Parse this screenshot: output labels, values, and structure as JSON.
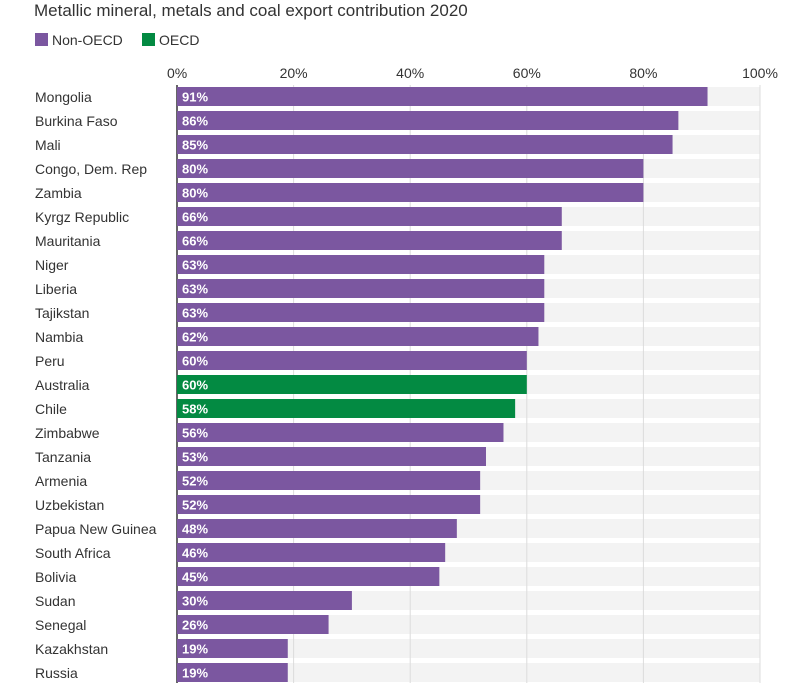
{
  "chart_data": {
    "type": "bar",
    "orientation": "horizontal",
    "title": "Metallic mineral, metals and coal export contribution 2020",
    "legend": [
      {
        "name": "Non-OECD",
        "color": "#7b57a0"
      },
      {
        "name": "OECD",
        "color": "#038a42"
      }
    ],
    "legend_placement": "top-left",
    "xlim": [
      0,
      100
    ],
    "x_ticks": [
      "0%",
      "20%",
      "40%",
      "60%",
      "80%",
      "100%"
    ],
    "x_tick_values": [
      0,
      20,
      40,
      60,
      80,
      100
    ],
    "grid": true,
    "categories": [
      "Mongolia",
      "Burkina Faso",
      "Mali",
      "Congo, Dem. Rep",
      "Zambia",
      "Kyrgz Republic",
      "Mauritania",
      "Niger",
      "Liberia",
      "Tajikstan",
      "Nambia",
      "Peru",
      "Australia",
      "Chile",
      "Zimbabwe",
      "Tanzania",
      "Armenia",
      "Uzbekistan",
      "Papua New Guinea",
      "South Africa",
      "Bolivia",
      "Sudan",
      "Senegal",
      "Kazakhstan",
      "Russia"
    ],
    "values": [
      91,
      86,
      85,
      80,
      80,
      66,
      66,
      63,
      63,
      63,
      62,
      60,
      60,
      58,
      56,
      53,
      52,
      52,
      48,
      46,
      45,
      30,
      26,
      19,
      19
    ],
    "value_labels": [
      "91%",
      "86%",
      "85%",
      "80%",
      "80%",
      "66%",
      "66%",
      "63%",
      "63%",
      "63%",
      "62%",
      "60%",
      "60%",
      "58%",
      "56%",
      "53%",
      "52%",
      "52%",
      "48%",
      "46%",
      "45%",
      "30%",
      "26%",
      "19%",
      "19%"
    ],
    "groups": [
      "Non-OECD",
      "Non-OECD",
      "Non-OECD",
      "Non-OECD",
      "Non-OECD",
      "Non-OECD",
      "Non-OECD",
      "Non-OECD",
      "Non-OECD",
      "Non-OECD",
      "Non-OECD",
      "Non-OECD",
      "OECD",
      "OECD",
      "Non-OECD",
      "Non-OECD",
      "Non-OECD",
      "Non-OECD",
      "Non-OECD",
      "Non-OECD",
      "Non-OECD",
      "Non-OECD",
      "Non-OECD",
      "Non-OECD",
      "Non-OECD"
    ]
  }
}
